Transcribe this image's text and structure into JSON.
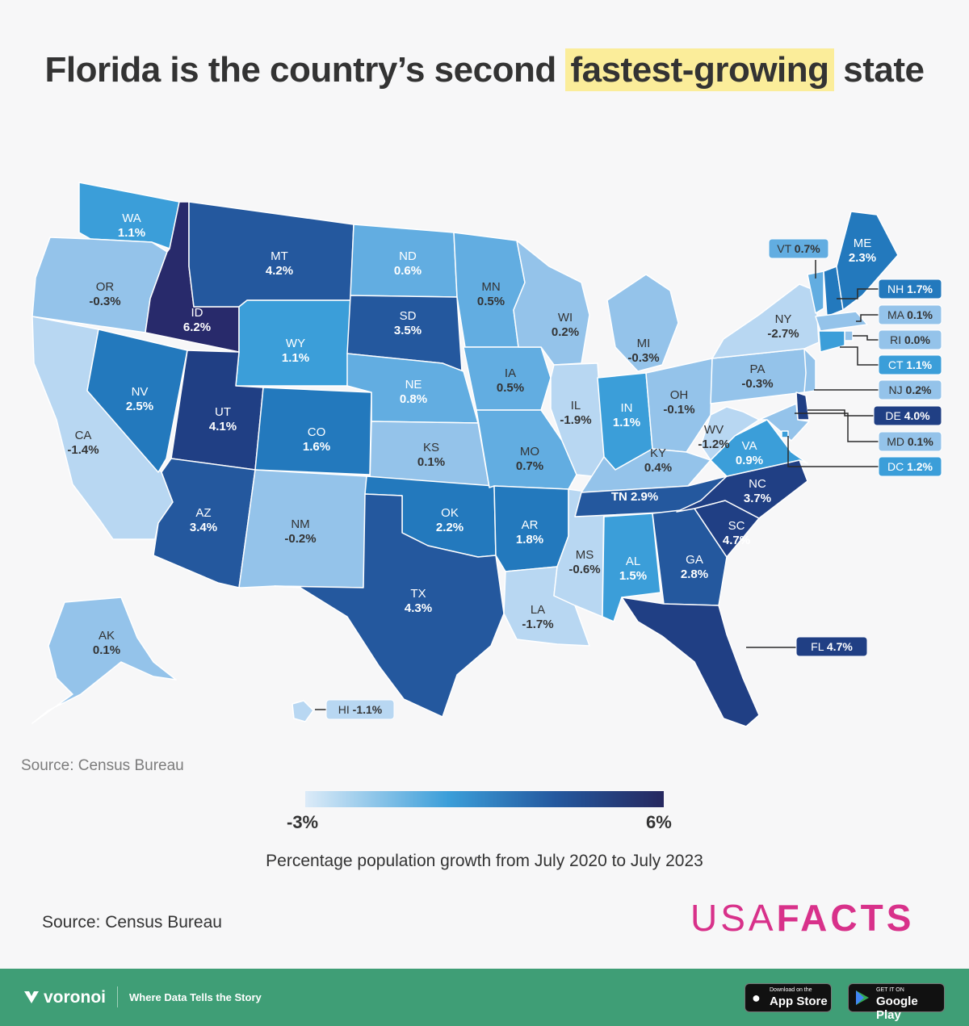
{
  "title": {
    "before": "Florida is the country’s second ",
    "highlight": "fastest-growing",
    "after": " state"
  },
  "colors": {
    "c1": "#b8d7f2",
    "c2": "#94c3ea",
    "c3": "#62ade1",
    "c4": "#3b9ed9",
    "c5": "#2379bd",
    "c6": "#24589e",
    "c7": "#203f84",
    "c8": "#282a6b",
    "border": "#ffffff"
  },
  "states": [
    {
      "id": "WA",
      "label": "WA",
      "value": "1.1%"
    },
    {
      "id": "OR",
      "label": "OR",
      "value": "-0.3%"
    },
    {
      "id": "CA",
      "label": "CA",
      "value": "-1.4%"
    },
    {
      "id": "NV",
      "label": "NV",
      "value": "2.5%"
    },
    {
      "id": "ID",
      "label": "ID",
      "value": "6.2%"
    },
    {
      "id": "MT",
      "label": "MT",
      "value": "4.2%"
    },
    {
      "id": "WY",
      "label": "WY",
      "value": "1.1%"
    },
    {
      "id": "UT",
      "label": "UT",
      "value": "4.1%"
    },
    {
      "id": "AZ",
      "label": "AZ",
      "value": "3.4%"
    },
    {
      "id": "CO",
      "label": "CO",
      "value": "1.6%"
    },
    {
      "id": "NM",
      "label": "NM",
      "value": "-0.2%"
    },
    {
      "id": "ND",
      "label": "ND",
      "value": "0.6%"
    },
    {
      "id": "SD",
      "label": "SD",
      "value": "3.5%"
    },
    {
      "id": "NE",
      "label": "NE",
      "value": "0.8%"
    },
    {
      "id": "KS",
      "label": "KS",
      "value": "0.1%"
    },
    {
      "id": "OK",
      "label": "OK",
      "value": "2.2%"
    },
    {
      "id": "TX",
      "label": "TX",
      "value": "4.3%"
    },
    {
      "id": "MN",
      "label": "MN",
      "value": "0.5%"
    },
    {
      "id": "IA",
      "label": "IA",
      "value": "0.5%"
    },
    {
      "id": "MO",
      "label": "MO",
      "value": "0.7%"
    },
    {
      "id": "AR",
      "label": "AR",
      "value": "1.8%"
    },
    {
      "id": "LA",
      "label": "LA",
      "value": "-1.7%"
    },
    {
      "id": "WI",
      "label": "WI",
      "value": "0.2%"
    },
    {
      "id": "IL",
      "label": "IL",
      "value": "-1.9%"
    },
    {
      "id": "MS",
      "label": "MS",
      "value": "-0.6%"
    },
    {
      "id": "MI",
      "label": "MI",
      "value": "-0.3%"
    },
    {
      "id": "IN",
      "label": "IN",
      "value": "1.1%"
    },
    {
      "id": "OH",
      "label": "OH",
      "value": "-0.1%"
    },
    {
      "id": "KY",
      "label": "KY",
      "value": "0.4%"
    },
    {
      "id": "TN",
      "label": "TN",
      "value": "2.9%"
    },
    {
      "id": "AL",
      "label": "AL",
      "value": "1.5%"
    },
    {
      "id": "GA",
      "label": "GA",
      "value": "2.8%"
    },
    {
      "id": "FL",
      "label": "FL",
      "value": "4.7%"
    },
    {
      "id": "SC",
      "label": "SC",
      "value": "4.7%"
    },
    {
      "id": "NC",
      "label": "NC",
      "value": "3.7%"
    },
    {
      "id": "VA",
      "label": "VA",
      "value": "0.9%"
    },
    {
      "id": "WV",
      "label": "WV",
      "value": "-1.2%"
    },
    {
      "id": "PA",
      "label": "PA",
      "value": "-0.3%"
    },
    {
      "id": "NY",
      "label": "NY",
      "value": "-2.7%"
    },
    {
      "id": "VT",
      "label": "VT",
      "value": "0.7%"
    },
    {
      "id": "NH",
      "label": "NH",
      "value": "1.7%"
    },
    {
      "id": "ME",
      "label": "ME",
      "value": "2.3%"
    },
    {
      "id": "MA",
      "label": "MA",
      "value": "0.1%"
    },
    {
      "id": "RI",
      "label": "RI",
      "value": "0.0%"
    },
    {
      "id": "CT",
      "label": "CT",
      "value": "1.1%"
    },
    {
      "id": "NJ",
      "label": "NJ",
      "value": "0.2%"
    },
    {
      "id": "DE",
      "label": "DE",
      "value": "4.0%"
    },
    {
      "id": "MD",
      "label": "MD",
      "value": "0.1%"
    },
    {
      "id": "DC",
      "label": "DC",
      "value": "1.2%"
    },
    {
      "id": "AK",
      "label": "AK",
      "value": "0.1%"
    },
    {
      "id": "HI",
      "label": "HI",
      "value": "-1.1%"
    }
  ],
  "source_top": "Source: Census Bureau",
  "legend": {
    "min": "-3%",
    "max": "6%",
    "title": "Percentage population growth from July 2020 to July 2023"
  },
  "source_bottom": "Source: Census Bureau",
  "logo": {
    "usa": "USA",
    "facts": "FACTS"
  },
  "footer": {
    "brand": "voronoi",
    "tagline": "Where Data Tells the Story",
    "app_store": {
      "small": "Download on the",
      "large": "App Store"
    },
    "google_play": {
      "small": "GET IT ON",
      "large": "Google Play"
    }
  }
}
